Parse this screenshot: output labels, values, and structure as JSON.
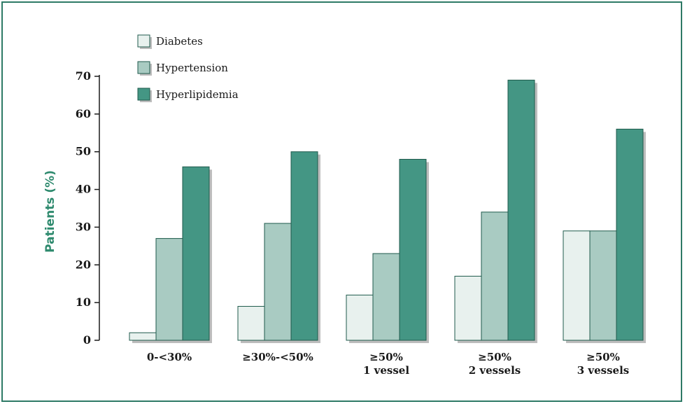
{
  "chart_data": {
    "type": "bar",
    "title": "",
    "xlabel": "",
    "ylabel": "Patients (%)",
    "ylim": [
      0,
      70
    ],
    "yticks": [
      0,
      10,
      20,
      30,
      40,
      50,
      60,
      70
    ],
    "grid": false,
    "legend_position": "top-left",
    "categories": [
      [
        "0-<30%"
      ],
      [
        "≥30%-<50%"
      ],
      [
        "≥50%",
        "1 vessel"
      ],
      [
        "≥50%",
        "2 vessels"
      ],
      [
        "≥50%",
        "3 vessels"
      ]
    ],
    "series": [
      {
        "name": "Diabetes",
        "color": "#e8f1ee",
        "values": [
          2,
          9,
          12,
          17,
          29
        ]
      },
      {
        "name": "Hypertension",
        "color": "#a9cbc2",
        "values": [
          27,
          31,
          23,
          34,
          29
        ]
      },
      {
        "name": "Hyperlipidemia",
        "color": "#449684",
        "values": [
          46,
          50,
          48,
          69,
          56
        ]
      }
    ],
    "colors": {
      "axis": "#1a1a1a",
      "bar_outline": "#1f5a4c",
      "shadow": "#bdbdbd",
      "ylabel": "#2e8a6e",
      "frame": "#2e7a66"
    }
  }
}
